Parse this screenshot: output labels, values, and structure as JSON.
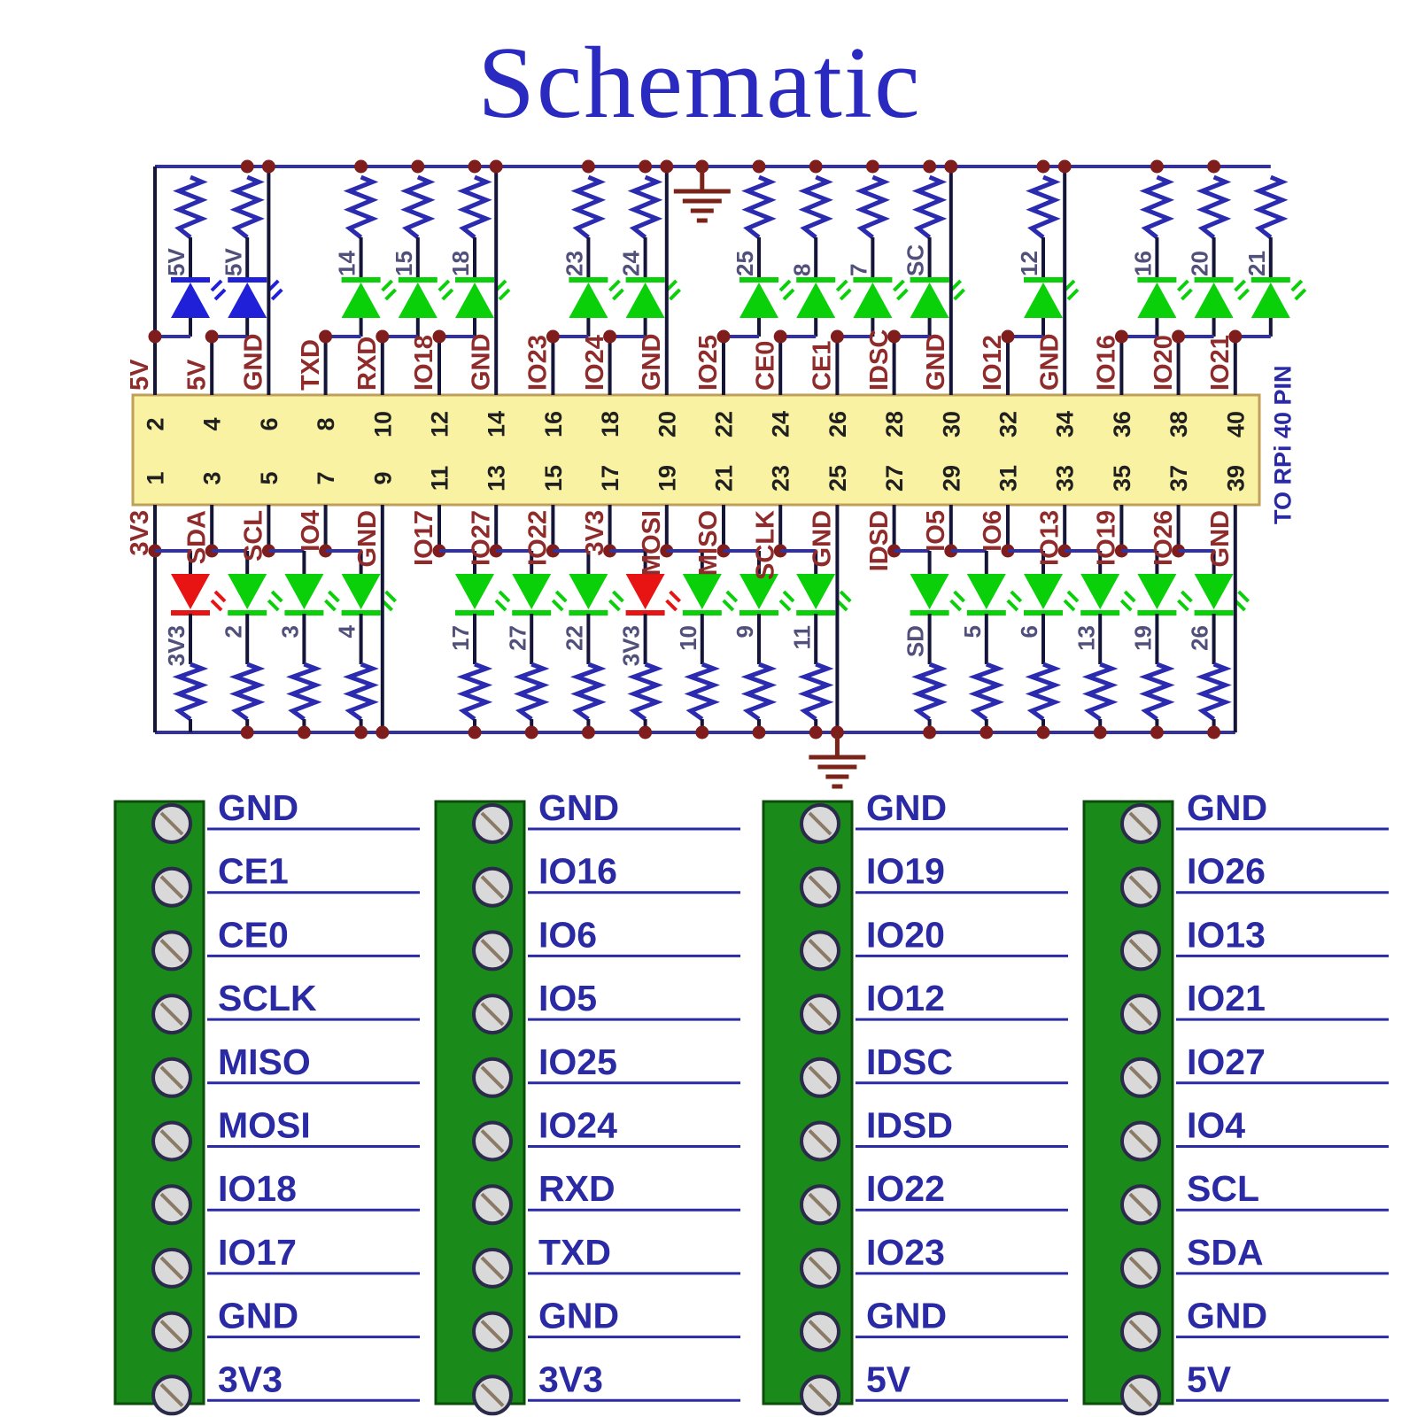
{
  "title": "Schematic",
  "side_note": "TO RPi 40 PIN",
  "colors": {
    "title": "#2a2ac0",
    "wire": "#32329a",
    "stub": "#15153a",
    "resistor": "#2b2bb0",
    "dot": "#7f1d1d",
    "pin_label": "#8f2b2b",
    "led_label": "#50507a",
    "pin_number": "#202020",
    "strip_fill": "#f8f2a2",
    "strip_border": "#bfa05a",
    "ground": "#7a2318",
    "led_green": "#0ad00a",
    "led_blue": "#2020d8",
    "led_red": "#e81414",
    "block_fill": "#1a8a1a",
    "block_border": "#0c4d0c",
    "screw_fill": "#d9d9d9",
    "screw_border": "#2a2a4a",
    "screw_slot": "#8a7a66",
    "terminal_label": "#2a2aa4"
  },
  "top_row": [
    {
      "pin": 2,
      "label": "5V",
      "led": "5V",
      "color": "blue"
    },
    {
      "pin": 4,
      "label": "5V",
      "led": "5V",
      "color": "blue"
    },
    {
      "pin": 6,
      "label": "GND",
      "led": null,
      "color": null
    },
    {
      "pin": 8,
      "label": "TXD",
      "led": "14",
      "color": "green"
    },
    {
      "pin": 10,
      "label": "RXD",
      "led": "15",
      "color": "green"
    },
    {
      "pin": 12,
      "label": "IO18",
      "led": "18",
      "color": "green"
    },
    {
      "pin": 14,
      "label": "GND",
      "led": null,
      "color": null
    },
    {
      "pin": 16,
      "label": "IO23",
      "led": "23",
      "color": "green"
    },
    {
      "pin": 18,
      "label": "IO24",
      "led": "24",
      "color": "green"
    },
    {
      "pin": 20,
      "label": "GND",
      "led": null,
      "color": null,
      "gnd_symbol": true
    },
    {
      "pin": 22,
      "label": "IO25",
      "led": "25",
      "color": "green"
    },
    {
      "pin": 24,
      "label": "CE0",
      "led": "8",
      "color": "green"
    },
    {
      "pin": 26,
      "label": "CE1",
      "led": "7",
      "color": "green"
    },
    {
      "pin": 28,
      "label": "IDSC",
      "led": "SC",
      "color": "green"
    },
    {
      "pin": 30,
      "label": "GND",
      "led": null,
      "color": null
    },
    {
      "pin": 32,
      "label": "IO12",
      "led": "12",
      "color": "green"
    },
    {
      "pin": 34,
      "label": "GND",
      "led": null,
      "color": null
    },
    {
      "pin": 36,
      "label": "IO16",
      "led": "16",
      "color": "green"
    },
    {
      "pin": 38,
      "label": "IO20",
      "led": "20",
      "color": "green"
    },
    {
      "pin": 40,
      "label": "IO21",
      "led": "21",
      "color": "green"
    }
  ],
  "bottom_row": [
    {
      "pin": 1,
      "label": "3V3",
      "led": "3V3",
      "color": "red"
    },
    {
      "pin": 3,
      "label": "SDA",
      "led": "2",
      "color": "green"
    },
    {
      "pin": 5,
      "label": "SCL",
      "led": "3",
      "color": "green"
    },
    {
      "pin": 7,
      "label": "IO4",
      "led": "4",
      "color": "green"
    },
    {
      "pin": 9,
      "label": "GND",
      "led": null,
      "color": null
    },
    {
      "pin": 11,
      "label": "IO17",
      "led": "17",
      "color": "green"
    },
    {
      "pin": 13,
      "label": "IO27",
      "led": "27",
      "color": "green"
    },
    {
      "pin": 15,
      "label": "IO22",
      "led": "22",
      "color": "green"
    },
    {
      "pin": 17,
      "label": "3V3",
      "led": "3V3",
      "color": "red"
    },
    {
      "pin": 19,
      "label": "MOSI",
      "led": "10",
      "color": "green"
    },
    {
      "pin": 21,
      "label": "MISO",
      "led": "9",
      "color": "green"
    },
    {
      "pin": 23,
      "label": "SCLK",
      "led": "11",
      "color": "green"
    },
    {
      "pin": 25,
      "label": "GND",
      "led": null,
      "color": null,
      "gnd_symbol": true
    },
    {
      "pin": 27,
      "label": "IDSD",
      "led": "SD",
      "color": "green"
    },
    {
      "pin": 29,
      "label": "IO5",
      "led": "5",
      "color": "green"
    },
    {
      "pin": 31,
      "label": "IO6",
      "led": "6",
      "color": "green"
    },
    {
      "pin": 33,
      "label": "IO13",
      "led": "13",
      "color": "green"
    },
    {
      "pin": 35,
      "label": "IO19",
      "led": "19",
      "color": "green"
    },
    {
      "pin": 37,
      "label": "IO26",
      "led": "26",
      "color": "green"
    },
    {
      "pin": 39,
      "label": "GND",
      "led": null,
      "color": null
    }
  ],
  "terminal_blocks": [
    {
      "labels": [
        "GND",
        "CE1",
        "CE0",
        "SCLK",
        "MISO",
        "MOSI",
        "IO18",
        "IO17",
        "GND",
        "3V3"
      ]
    },
    {
      "labels": [
        "GND",
        "IO16",
        "IO6",
        "IO5",
        "IO25",
        "IO24",
        "RXD",
        "TXD",
        "GND",
        "3V3"
      ]
    },
    {
      "labels": [
        "GND",
        "IO19",
        "IO20",
        "IO12",
        "IDSC",
        "IDSD",
        "IO22",
        "IO23",
        "GND",
        "5V"
      ]
    },
    {
      "labels": [
        "GND",
        "IO26",
        "IO13",
        "IO21",
        "IO27",
        "IO4",
        "SCL",
        "SDA",
        "GND",
        "5V"
      ]
    }
  ]
}
